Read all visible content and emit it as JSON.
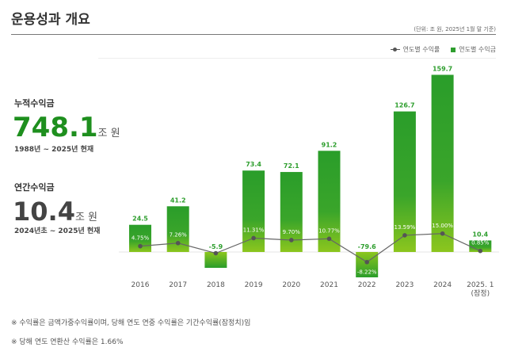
{
  "header": {
    "title": "운용성과 개요",
    "unit_note": "(단위: 조 원, 2025년 1월 말 기준)"
  },
  "summary": {
    "cumulative": {
      "label": "누적수익금",
      "value": "748.1",
      "unit": "조 원",
      "period": "1988년 ~ 2025년 현재",
      "color": "#1e8f1e"
    },
    "annual": {
      "label": "연간수익금",
      "value": "10.4",
      "unit": "조 원",
      "period": "2024년초 ~ 2025년 현재",
      "color": "#444444"
    }
  },
  "chart_data": {
    "type": "bar+line",
    "categories": [
      "2016",
      "2017",
      "2018",
      "2019",
      "2020",
      "2021",
      "2022",
      "2023",
      "2024",
      "2025. 1\n(잠정)"
    ],
    "series": [
      {
        "name": "연도별 수익금",
        "type": "bar",
        "values": [
          24.5,
          41.2,
          -5.9,
          73.4,
          72.1,
          91.2,
          -79.6,
          126.7,
          159.7,
          10.4
        ],
        "labels": [
          "24.5",
          "41.2",
          "-5.9",
          "73.4",
          "72.1",
          "91.2",
          "-79.6",
          "126.7",
          "159.7",
          "10.4"
        ],
        "color": "#2e9e2e"
      },
      {
        "name": "연도별 수익률",
        "type": "line",
        "values": [
          4.75,
          7.26,
          -1.0,
          11.31,
          9.7,
          10.77,
          -8.22,
          13.59,
          15.0,
          0.85
        ],
        "labels": [
          "4.75%",
          "7.26%",
          "",
          "11.31%",
          "9.70%",
          "10.77%",
          "-8.22%",
          "13.59%",
          "15.00%",
          "0.85%"
        ],
        "color": "#555555"
      }
    ],
    "legend": [
      "연도별 수익률",
      "연도별 수익금"
    ],
    "legend_position": "top-right",
    "grid": false
  },
  "footnotes": [
    "※ 수익률은 금액가중수익률이며, 당해 연도 연중 수익률은 기간수익률(잠정치)임",
    "※ 당해 연도 연환산 수익률은 1.66%"
  ]
}
